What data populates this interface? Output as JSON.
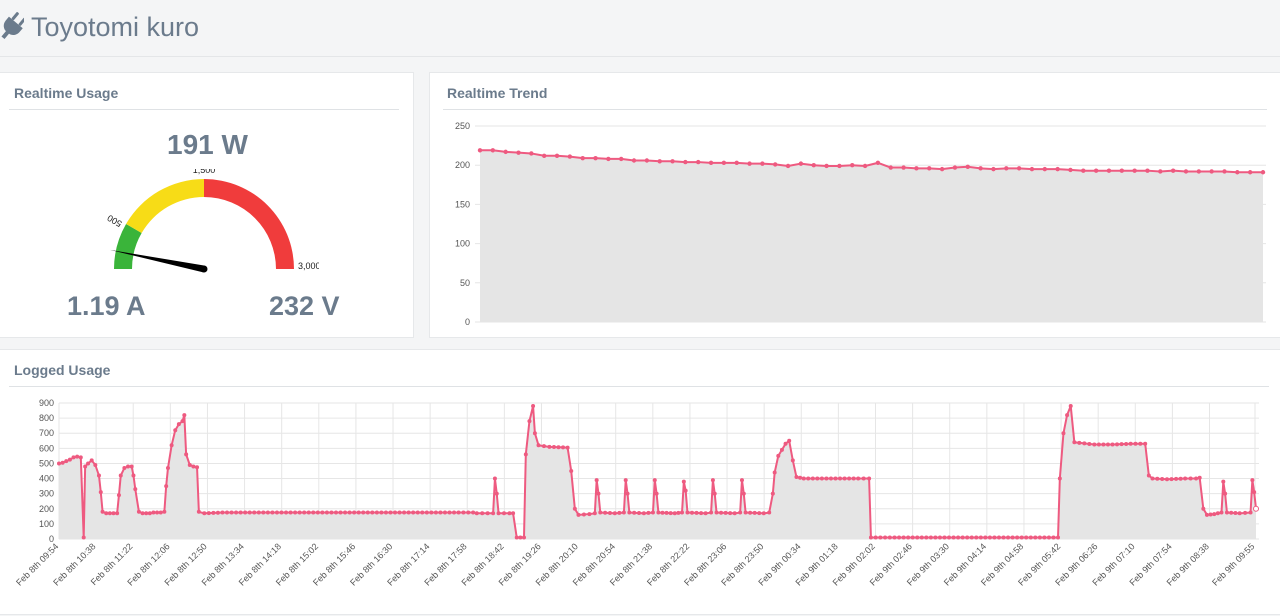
{
  "app": {
    "title": "Toyotomi kuro",
    "icon": "plug-icon"
  },
  "usage": {
    "title": "Realtime Usage",
    "power": "191 W",
    "current": "1.19 A",
    "voltage": "232 V",
    "gauge": {
      "min": 0,
      "max": 3000,
      "value": 191,
      "labels": [
        "500",
        "1,500",
        "3,000"
      ],
      "bands": [
        {
          "from": 0,
          "to": 500,
          "color": "#3ab43a"
        },
        {
          "from": 500,
          "to": 1500,
          "color": "#f7dc17"
        },
        {
          "from": 1500,
          "to": 3000,
          "color": "#f03c3c"
        }
      ]
    }
  },
  "trend": {
    "title": "Realtime Trend"
  },
  "logged": {
    "title": "Logged Usage"
  },
  "colors": {
    "line": "#ee5a80",
    "fill": "#e5e5e5",
    "grid": "#e6e6e6"
  },
  "chart_data": [
    {
      "type": "area",
      "name": "realtime-trend",
      "ylim": [
        0,
        250
      ],
      "yticks": [
        "0",
        "50",
        "100",
        "150",
        "200",
        "250"
      ],
      "values": [
        219,
        219,
        217,
        216,
        215,
        212,
        212,
        211,
        209,
        209,
        208,
        208,
        206,
        206,
        205,
        205,
        204,
        204,
        203,
        203,
        203,
        202,
        202,
        201,
        199,
        202,
        200,
        199,
        199,
        200,
        199,
        203,
        197,
        197,
        196,
        196,
        195,
        197,
        198,
        196,
        195,
        196,
        196,
        195,
        195,
        195,
        194,
        193,
        193,
        193,
        193,
        193,
        193,
        192,
        193,
        192,
        192,
        192,
        192,
        191,
        191,
        191
      ]
    },
    {
      "type": "area",
      "name": "logged-usage",
      "ylim": [
        0,
        900
      ],
      "yticks": [
        "0",
        "100",
        "200",
        "300",
        "400",
        "500",
        "600",
        "700",
        "800",
        "900"
      ],
      "xticks": [
        "Feb 8th 09:54",
        "Feb 8th 10:38",
        "Feb 8th 11:22",
        "Feb 8th 12:06",
        "Feb 8th 12:50",
        "Feb 8th 13:34",
        "Feb 8th 14:18",
        "Feb 8th 15:02",
        "Feb 8th 15:46",
        "Feb 8th 16:30",
        "Feb 8th 17:14",
        "Feb 8th 17:58",
        "Feb 8th 18:42",
        "Feb 8th 19:26",
        "Feb 8th 20:10",
        "Feb 8th 20:54",
        "Feb 8th 21:38",
        "Feb 8th 22:22",
        "Feb 8th 23:06",
        "Feb 8th 23:50",
        "Feb 9th 00:34",
        "Feb 9th 01:18",
        "Feb 9th 02:02",
        "Feb 9th 02:46",
        "Feb 9th 03:30",
        "Feb 9th 04:14",
        "Feb 9th 04:58",
        "Feb 9th 05:42",
        "Feb 9th 06:26",
        "Feb 9th 07:10",
        "Feb 9th 07:54",
        "Feb 9th 08:38",
        "Feb 9th 09:55"
      ],
      "points": [
        [
          0,
          500
        ],
        [
          0.1,
          505
        ],
        [
          0.2,
          515
        ],
        [
          0.3,
          525
        ],
        [
          0.4,
          540
        ],
        [
          0.5,
          545
        ],
        [
          0.6,
          540
        ],
        [
          0.68,
          10
        ],
        [
          0.72,
          480
        ],
        [
          0.8,
          500
        ],
        [
          0.9,
          520
        ],
        [
          1.0,
          490
        ],
        [
          1.1,
          420
        ],
        [
          1.15,
          310
        ],
        [
          1.2,
          180
        ],
        [
          1.3,
          170
        ],
        [
          1.4,
          170
        ],
        [
          1.5,
          170
        ],
        [
          1.6,
          170
        ],
        [
          1.65,
          290
        ],
        [
          1.7,
          420
        ],
        [
          1.8,
          470
        ],
        [
          1.9,
          480
        ],
        [
          2.0,
          480
        ],
        [
          2.05,
          420
        ],
        [
          2.1,
          330
        ],
        [
          2.2,
          180
        ],
        [
          2.3,
          170
        ],
        [
          2.4,
          170
        ],
        [
          2.5,
          170
        ],
        [
          2.6,
          175
        ],
        [
          2.7,
          175
        ],
        [
          2.8,
          175
        ],
        [
          2.9,
          180
        ],
        [
          2.95,
          350
        ],
        [
          3.0,
          470
        ],
        [
          3.1,
          620
        ],
        [
          3.2,
          720
        ],
        [
          3.3,
          760
        ],
        [
          3.4,
          780
        ],
        [
          3.45,
          820
        ],
        [
          3.5,
          560
        ],
        [
          3.6,
          490
        ],
        [
          3.7,
          480
        ],
        [
          3.8,
          475
        ],
        [
          3.85,
          180
        ],
        [
          4.0,
          170
        ],
        [
          4.5,
          175
        ],
        [
          5.0,
          175
        ],
        [
          5.5,
          175
        ],
        [
          6.0,
          175
        ],
        [
          6.5,
          175
        ],
        [
          7.0,
          175
        ],
        [
          7.5,
          175
        ],
        [
          8.0,
          175
        ],
        [
          8.5,
          175
        ],
        [
          9.0,
          175
        ],
        [
          9.5,
          175
        ],
        [
          10.0,
          175
        ],
        [
          10.5,
          175
        ],
        [
          11.0,
          175
        ],
        [
          11.4,
          175
        ],
        [
          11.5,
          170
        ],
        [
          11.8,
          170
        ],
        [
          11.95,
          170
        ],
        [
          12.0,
          400
        ],
        [
          12.05,
          300
        ],
        [
          12.1,
          170
        ],
        [
          12.4,
          170
        ],
        [
          12.5,
          170
        ],
        [
          12.6,
          10
        ],
        [
          12.8,
          10
        ],
        [
          12.85,
          560
        ],
        [
          12.95,
          780
        ],
        [
          13.05,
          880
        ],
        [
          13.1,
          700
        ],
        [
          13.2,
          620
        ],
        [
          13.5,
          610
        ],
        [
          14.0,
          605
        ],
        [
          14.1,
          450
        ],
        [
          14.2,
          200
        ],
        [
          14.3,
          160
        ],
        [
          14.6,
          165
        ],
        [
          14.75,
          170
        ],
        [
          14.8,
          390
        ],
        [
          14.85,
          300
        ],
        [
          14.9,
          175
        ],
        [
          15.3,
          170
        ],
        [
          15.55,
          175
        ],
        [
          15.6,
          390
        ],
        [
          15.65,
          300
        ],
        [
          15.7,
          175
        ],
        [
          16.1,
          170
        ],
        [
          16.35,
          175
        ],
        [
          16.4,
          390
        ],
        [
          16.45,
          300
        ],
        [
          16.5,
          175
        ],
        [
          16.95,
          170
        ],
        [
          17.15,
          175
        ],
        [
          17.2,
          380
        ],
        [
          17.25,
          320
        ],
        [
          17.3,
          175
        ],
        [
          17.8,
          170
        ],
        [
          17.95,
          175
        ],
        [
          18.0,
          390
        ],
        [
          18.05,
          300
        ],
        [
          18.1,
          175
        ],
        [
          18.6,
          170
        ],
        [
          18.75,
          175
        ],
        [
          18.8,
          390
        ],
        [
          18.85,
          300
        ],
        [
          18.9,
          175
        ],
        [
          19.4,
          170
        ],
        [
          19.55,
          175
        ],
        [
          19.65,
          300
        ],
        [
          19.7,
          440
        ],
        [
          19.8,
          550
        ],
        [
          19.9,
          590
        ],
        [
          20.0,
          630
        ],
        [
          20.1,
          650
        ],
        [
          20.2,
          520
        ],
        [
          20.3,
          410
        ],
        [
          20.5,
          400
        ],
        [
          21.0,
          400
        ],
        [
          21.5,
          400
        ],
        [
          22.0,
          400
        ],
        [
          22.3,
          400
        ],
        [
          22.35,
          10
        ],
        [
          23.0,
          10
        ],
        [
          24.0,
          10
        ],
        [
          25.0,
          10
        ],
        [
          26.0,
          10
        ],
        [
          27.0,
          10
        ],
        [
          27.5,
          10
        ],
        [
          27.55,
          400
        ],
        [
          27.65,
          700
        ],
        [
          27.75,
          820
        ],
        [
          27.85,
          880
        ],
        [
          27.95,
          640
        ],
        [
          28.5,
          625
        ],
        [
          29.0,
          625
        ],
        [
          29.5,
          630
        ],
        [
          29.9,
          630
        ],
        [
          30.0,
          420
        ],
        [
          30.1,
          400
        ],
        [
          30.5,
          395
        ],
        [
          31.0,
          400
        ],
        [
          31.3,
          400
        ],
        [
          31.4,
          405
        ],
        [
          31.5,
          200
        ],
        [
          31.6,
          160
        ],
        [
          31.8,
          165
        ],
        [
          32.0,
          175
        ],
        [
          32.05,
          380
        ],
        [
          32.1,
          300
        ],
        [
          32.15,
          175
        ],
        [
          32.5,
          170
        ],
        [
          32.8,
          175
        ],
        [
          32.85,
          390
        ],
        [
          32.9,
          310
        ],
        [
          32.95,
          200
        ]
      ]
    }
  ]
}
